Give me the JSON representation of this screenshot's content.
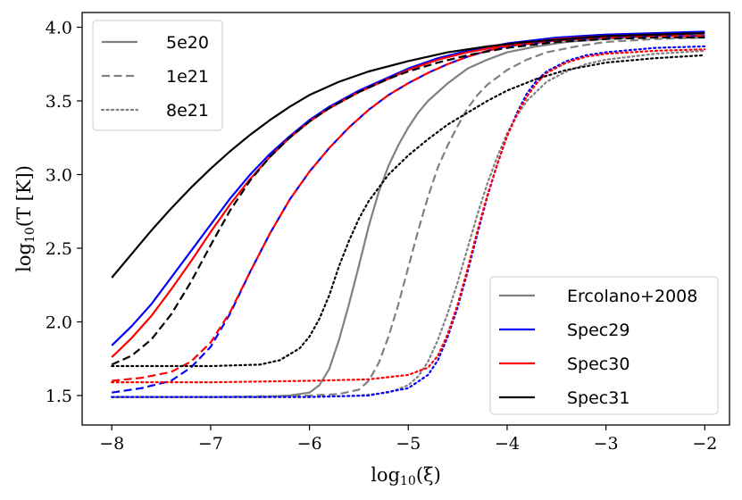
{
  "chart_data": {
    "type": "line",
    "xlabel_base": "log",
    "xlabel_sub": "10",
    "xlabel_arg": "(ξ)",
    "ylabel_base": "log",
    "ylabel_sub": "10",
    "ylabel_arg": "(T [K])",
    "xlim": [
      -8.3,
      -1.75
    ],
    "ylim": [
      1.3,
      4.1
    ],
    "xticks": [
      -8,
      -7,
      -6,
      -5,
      -4,
      -3,
      -2
    ],
    "xtick_labels": [
      "−8",
      "−7",
      "−6",
      "−5",
      "−4",
      "−3",
      "−2"
    ],
    "yticks": [
      1.5,
      2.0,
      2.5,
      3.0,
      3.5,
      4.0
    ],
    "ytick_labels": [
      "1.5",
      "2.0",
      "2.5",
      "3.0",
      "3.5",
      "4.0"
    ],
    "grid": false,
    "legend_styles": {
      "position": "top-left",
      "entries": [
        {
          "label": "5e20",
          "dash": "solid"
        },
        {
          "label": "1e21",
          "dash": "dashed"
        },
        {
          "label": "8e21",
          "dash": "dotted"
        }
      ]
    },
    "legend_models": {
      "position": "bottom-right",
      "entries": [
        {
          "label": "Ercolano+2008",
          "color": "#808080"
        },
        {
          "label": "Spec29",
          "color": "#0000ff"
        },
        {
          "label": "Spec30",
          "color": "#ff0000"
        },
        {
          "label": "Spec31",
          "color": "#000000"
        }
      ]
    },
    "series": [
      {
        "model": "Ercolano+2008",
        "column_density": "5e20",
        "color": "#808080",
        "dash": "solid",
        "x": [
          -8,
          -7,
          -6.5,
          -6.2,
          -6.0,
          -5.9,
          -5.8,
          -5.7,
          -5.6,
          -5.5,
          -5.4,
          -5.3,
          -5.2,
          -5.1,
          -5.0,
          -4.9,
          -4.8,
          -4.6,
          -4.4,
          -4.2,
          -4.0,
          -3.7,
          -3.4,
          -3.0,
          -2.5,
          -2.0
        ],
        "y": [
          1.49,
          1.49,
          1.49,
          1.5,
          1.52,
          1.57,
          1.68,
          1.88,
          2.12,
          2.38,
          2.65,
          2.88,
          3.06,
          3.2,
          3.32,
          3.42,
          3.5,
          3.62,
          3.72,
          3.78,
          3.83,
          3.87,
          3.9,
          3.92,
          3.94,
          3.95
        ]
      },
      {
        "model": "Ercolano+2008",
        "column_density": "1e21",
        "color": "#808080",
        "dash": "dashed",
        "x": [
          -8,
          -7,
          -6,
          -5.7,
          -5.5,
          -5.4,
          -5.3,
          -5.2,
          -5.1,
          -5.0,
          -4.9,
          -4.8,
          -4.7,
          -4.6,
          -4.5,
          -4.4,
          -4.3,
          -4.2,
          -4.0,
          -3.8,
          -3.6,
          -3.3,
          -3.0,
          -2.5,
          -2.0
        ],
        "y": [
          1.49,
          1.49,
          1.5,
          1.51,
          1.54,
          1.6,
          1.72,
          1.9,
          2.12,
          2.37,
          2.62,
          2.85,
          3.05,
          3.2,
          3.33,
          3.45,
          3.54,
          3.61,
          3.71,
          3.78,
          3.83,
          3.87,
          3.9,
          3.92,
          3.93
        ]
      },
      {
        "model": "Ercolano+2008",
        "column_density": "8e21",
        "color": "#808080",
        "dash": "dotted",
        "x": [
          -8,
          -7,
          -6,
          -5.5,
          -5.2,
          -5.0,
          -4.9,
          -4.8,
          -4.7,
          -4.6,
          -4.5,
          -4.4,
          -4.3,
          -4.2,
          -4.1,
          -4.0,
          -3.9,
          -3.8,
          -3.6,
          -3.4,
          -3.2,
          -3.0,
          -2.5,
          -2.0
        ],
        "y": [
          1.49,
          1.49,
          1.49,
          1.5,
          1.52,
          1.57,
          1.63,
          1.73,
          1.88,
          2.06,
          2.27,
          2.5,
          2.73,
          2.94,
          3.12,
          3.28,
          3.4,
          3.5,
          3.63,
          3.7,
          3.75,
          3.78,
          3.82,
          3.84
        ]
      },
      {
        "model": "Spec29",
        "column_density": "5e20",
        "color": "#0000ff",
        "dash": "solid",
        "x": [
          -8,
          -7.8,
          -7.6,
          -7.4,
          -7.2,
          -7.0,
          -6.8,
          -6.6,
          -6.4,
          -6.2,
          -6.0,
          -5.8,
          -5.5,
          -5.2,
          -5.0,
          -4.7,
          -4.4,
          -4.0,
          -3.5,
          -3.0,
          -2.5,
          -2.0
        ],
        "y": [
          1.84,
          1.97,
          2.12,
          2.3,
          2.48,
          2.66,
          2.84,
          3.0,
          3.14,
          3.26,
          3.37,
          3.46,
          3.57,
          3.66,
          3.72,
          3.79,
          3.84,
          3.89,
          3.93,
          3.95,
          3.96,
          3.97
        ]
      },
      {
        "model": "Spec29",
        "column_density": "1e21",
        "color": "#0000ff",
        "dash": "dashed",
        "x": [
          -8,
          -7.7,
          -7.4,
          -7.2,
          -7.0,
          -6.8,
          -6.6,
          -6.4,
          -6.2,
          -6.0,
          -5.8,
          -5.6,
          -5.4,
          -5.2,
          -5.0,
          -4.8,
          -4.6,
          -4.4,
          -4.2,
          -4.0,
          -3.5,
          -3.0,
          -2.5,
          -2.0
        ],
        "y": [
          1.52,
          1.55,
          1.6,
          1.69,
          1.83,
          2.06,
          2.34,
          2.6,
          2.83,
          3.02,
          3.18,
          3.32,
          3.44,
          3.54,
          3.62,
          3.69,
          3.75,
          3.8,
          3.84,
          3.87,
          3.91,
          3.93,
          3.94,
          3.94
        ]
      },
      {
        "model": "Spec29",
        "column_density": "8e21",
        "color": "#0000ff",
        "dash": "dotted",
        "x": [
          -8,
          -7,
          -6,
          -5.4,
          -5.0,
          -4.8,
          -4.7,
          -4.6,
          -4.5,
          -4.4,
          -4.3,
          -4.2,
          -4.1,
          -4.0,
          -3.9,
          -3.8,
          -3.7,
          -3.6,
          -3.4,
          -3.2,
          -3.0,
          -2.5,
          -2.0
        ],
        "y": [
          1.49,
          1.49,
          1.49,
          1.5,
          1.55,
          1.64,
          1.74,
          1.9,
          2.1,
          2.34,
          2.6,
          2.85,
          3.07,
          3.26,
          3.42,
          3.55,
          3.64,
          3.7,
          3.77,
          3.81,
          3.83,
          3.86,
          3.87
        ]
      },
      {
        "model": "Spec30",
        "column_density": "5e20",
        "color": "#ff0000",
        "dash": "solid",
        "x": [
          -8,
          -7.8,
          -7.6,
          -7.4,
          -7.2,
          -7.0,
          -6.8,
          -6.6,
          -6.4,
          -6.2,
          -6.0,
          -5.8,
          -5.5,
          -5.2,
          -5.0,
          -4.7,
          -4.4,
          -4.0,
          -3.5,
          -3.0,
          -2.5,
          -2.0
        ],
        "y": [
          1.76,
          1.89,
          2.04,
          2.22,
          2.41,
          2.61,
          2.8,
          2.97,
          3.12,
          3.25,
          3.36,
          3.45,
          3.56,
          3.65,
          3.71,
          3.78,
          3.83,
          3.88,
          3.92,
          3.94,
          3.95,
          3.96
        ]
      },
      {
        "model": "Spec30",
        "column_density": "1e21",
        "color": "#ff0000",
        "dash": "dashed",
        "x": [
          -8,
          -7.7,
          -7.4,
          -7.2,
          -7.0,
          -6.8,
          -6.6,
          -6.4,
          -6.2,
          -6.0,
          -5.8,
          -5.6,
          -5.4,
          -5.2,
          -5.0,
          -4.8,
          -4.6,
          -4.4,
          -4.2,
          -4.0,
          -3.5,
          -3.0,
          -2.5,
          -2.0
        ],
        "y": [
          1.6,
          1.62,
          1.66,
          1.73,
          1.86,
          2.07,
          2.34,
          2.6,
          2.83,
          3.02,
          3.18,
          3.32,
          3.44,
          3.54,
          3.62,
          3.69,
          3.75,
          3.8,
          3.84,
          3.87,
          3.91,
          3.93,
          3.94,
          3.94
        ]
      },
      {
        "model": "Spec30",
        "column_density": "8e21",
        "color": "#ff0000",
        "dash": "dotted",
        "x": [
          -8,
          -7,
          -6,
          -5.4,
          -5.0,
          -4.8,
          -4.7,
          -4.6,
          -4.5,
          -4.4,
          -4.3,
          -4.2,
          -4.1,
          -4.0,
          -3.9,
          -3.8,
          -3.7,
          -3.6,
          -3.4,
          -3.2,
          -3.0,
          -2.5,
          -2.0
        ],
        "y": [
          1.59,
          1.59,
          1.6,
          1.61,
          1.64,
          1.69,
          1.77,
          1.92,
          2.12,
          2.36,
          2.62,
          2.86,
          3.07,
          3.26,
          3.41,
          3.53,
          3.62,
          3.69,
          3.76,
          3.8,
          3.82,
          3.84,
          3.85
        ]
      },
      {
        "model": "Spec31",
        "column_density": "5e20",
        "color": "#000000",
        "dash": "solid",
        "x": [
          -8,
          -7.8,
          -7.6,
          -7.4,
          -7.2,
          -7.0,
          -6.8,
          -6.6,
          -6.4,
          -6.2,
          -6.0,
          -5.7,
          -5.4,
          -5.0,
          -4.6,
          -4.2,
          -3.8,
          -3.4,
          -3.0,
          -2.5,
          -2.0
        ],
        "y": [
          2.3,
          2.46,
          2.62,
          2.77,
          2.91,
          3.04,
          3.16,
          3.27,
          3.37,
          3.46,
          3.54,
          3.63,
          3.7,
          3.77,
          3.83,
          3.87,
          3.9,
          3.92,
          3.94,
          3.95,
          3.96
        ]
      },
      {
        "model": "Spec31",
        "column_density": "1e21",
        "color": "#000000",
        "dash": "dashed",
        "x": [
          -8,
          -7.8,
          -7.6,
          -7.4,
          -7.2,
          -7.0,
          -6.8,
          -6.6,
          -6.4,
          -6.2,
          -6.0,
          -5.8,
          -5.5,
          -5.2,
          -5.0,
          -4.7,
          -4.4,
          -4.0,
          -3.5,
          -3.0,
          -2.5,
          -2.0
        ],
        "y": [
          1.71,
          1.77,
          1.88,
          2.05,
          2.27,
          2.52,
          2.76,
          2.96,
          3.12,
          3.25,
          3.36,
          3.45,
          3.56,
          3.65,
          3.7,
          3.76,
          3.81,
          3.86,
          3.9,
          3.92,
          3.93,
          3.93
        ]
      },
      {
        "model": "Spec31",
        "column_density": "8e21",
        "color": "#000000",
        "dash": "dotted",
        "x": [
          -8,
          -7,
          -6.5,
          -6.3,
          -6.1,
          -6.0,
          -5.9,
          -5.8,
          -5.7,
          -5.6,
          -5.5,
          -5.4,
          -5.2,
          -5.0,
          -4.8,
          -4.6,
          -4.4,
          -4.2,
          -4.0,
          -3.7,
          -3.4,
          -3.0,
          -2.5,
          -2.0
        ],
        "y": [
          1.7,
          1.7,
          1.71,
          1.74,
          1.82,
          1.9,
          2.02,
          2.18,
          2.38,
          2.55,
          2.7,
          2.82,
          3.0,
          3.13,
          3.24,
          3.34,
          3.42,
          3.5,
          3.57,
          3.65,
          3.71,
          3.76,
          3.79,
          3.81
        ]
      }
    ]
  }
}
